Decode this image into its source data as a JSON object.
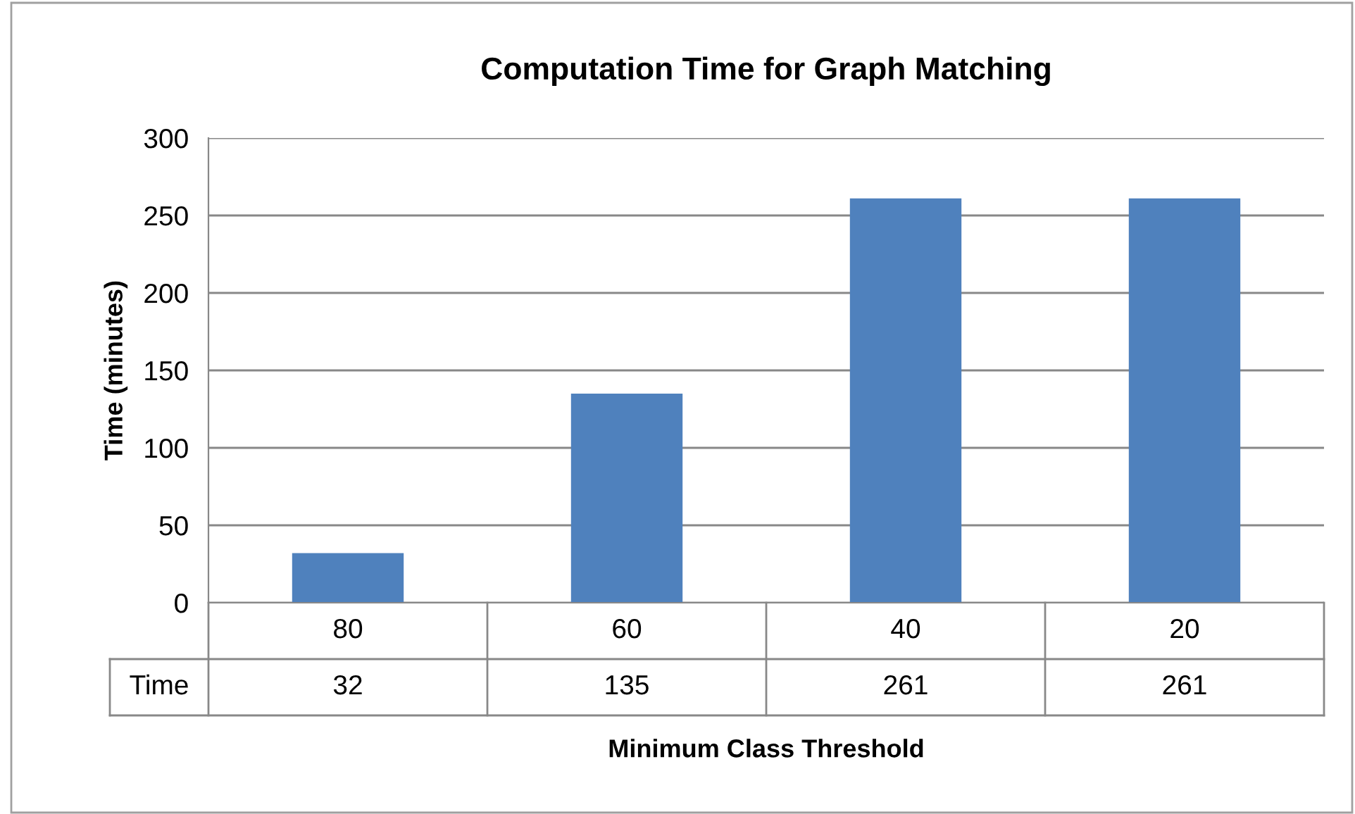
{
  "chart_data": {
    "type": "bar",
    "title": "Computation Time for Graph Matching",
    "xlabel": "Minimum Class Threshold",
    "ylabel": "Time (minutes)",
    "categories": [
      "80",
      "60",
      "40",
      "20"
    ],
    "series": [
      {
        "name": "Time",
        "color": "#4f81bd",
        "values": [
          32,
          135,
          261,
          261
        ]
      }
    ],
    "ylim": [
      0,
      300
    ],
    "yticks": [
      0,
      50,
      100,
      150,
      200,
      250,
      300
    ],
    "grid": "y",
    "data_labels": true,
    "legend": false
  }
}
